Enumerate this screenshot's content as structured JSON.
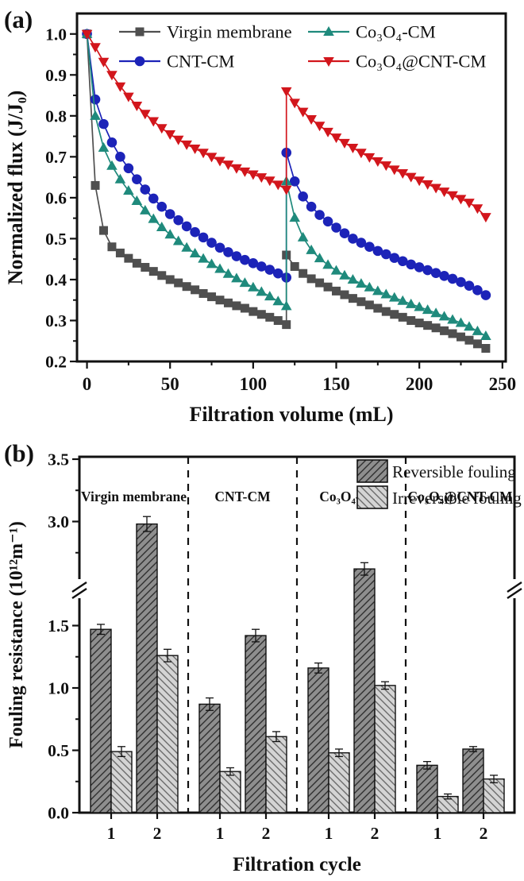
{
  "figure": {
    "panel_a_label": "(a)",
    "panel_b_label": "(b)",
    "background": "#ffffff",
    "frame_color": "#111111"
  },
  "chart_data": [
    {
      "type": "line",
      "panel": "a",
      "xlabel": "Filtration volume (mL)",
      "ylabel": "Normalized flux (J/J₀)",
      "xlim": [
        -6,
        252
      ],
      "ylim": [
        0.2,
        1.05
      ],
      "xticks": [
        0,
        50,
        100,
        150,
        200,
        250
      ],
      "xminor": [
        25,
        75,
        125,
        175,
        225
      ],
      "yticks": [
        0.2,
        0.3,
        0.4,
        0.5,
        0.6,
        0.7,
        0.8,
        0.9,
        1.0
      ],
      "yminor": [
        0.25,
        0.35,
        0.45,
        0.55,
        0.65,
        0.75,
        0.85,
        0.95
      ],
      "grid": false,
      "legend_position": "top-inside-two-columns",
      "legend_rows": [
        [
          0,
          2
        ],
        [
          1,
          3
        ]
      ],
      "x_cycle1": [
        0,
        5,
        10,
        15,
        20,
        25,
        30,
        35,
        40,
        45,
        50,
        55,
        60,
        65,
        70,
        75,
        80,
        85,
        90,
        95,
        100,
        105,
        110,
        115,
        120
      ],
      "x_cycle2": [
        120,
        125,
        130,
        135,
        140,
        145,
        150,
        155,
        160,
        165,
        170,
        175,
        180,
        185,
        190,
        195,
        200,
        205,
        210,
        215,
        220,
        225,
        230,
        235,
        240
      ],
      "series": [
        {
          "name": "Virgin membrane",
          "color": "#4f4f4f",
          "marker": "square",
          "y_cycle1": [
            1.0,
            0.63,
            0.52,
            0.48,
            0.465,
            0.452,
            0.44,
            0.43,
            0.42,
            0.41,
            0.4,
            0.392,
            0.383,
            0.375,
            0.366,
            0.358,
            0.35,
            0.343,
            0.336,
            0.33,
            0.322,
            0.315,
            0.308,
            0.3,
            0.29
          ],
          "y_cycle2": [
            0.46,
            0.432,
            0.415,
            0.402,
            0.392,
            0.382,
            0.372,
            0.363,
            0.354,
            0.346,
            0.338,
            0.33,
            0.322,
            0.315,
            0.308,
            0.3,
            0.294,
            0.288,
            0.282,
            0.275,
            0.268,
            0.26,
            0.252,
            0.243,
            0.232
          ]
        },
        {
          "name": "CNT-CM",
          "color": "#1c23b8",
          "marker": "circle",
          "y_cycle1": [
            1.0,
            0.84,
            0.78,
            0.735,
            0.7,
            0.672,
            0.645,
            0.62,
            0.598,
            0.578,
            0.56,
            0.545,
            0.53,
            0.516,
            0.503,
            0.49,
            0.478,
            0.467,
            0.457,
            0.448,
            0.44,
            0.432,
            0.424,
            0.415,
            0.405
          ],
          "y_cycle2": [
            0.71,
            0.64,
            0.603,
            0.578,
            0.558,
            0.542,
            0.527,
            0.513,
            0.5,
            0.49,
            0.48,
            0.47,
            0.462,
            0.453,
            0.445,
            0.437,
            0.43,
            0.423,
            0.416,
            0.409,
            0.402,
            0.394,
            0.385,
            0.374,
            0.362
          ]
        },
        {
          "name": "Co₃O₄-CM",
          "color": "#1f8a7c",
          "marker": "triangle-up",
          "y_cycle1": [
            1.0,
            0.8,
            0.722,
            0.678,
            0.645,
            0.617,
            0.592,
            0.569,
            0.548,
            0.528,
            0.51,
            0.494,
            0.478,
            0.464,
            0.451,
            0.438,
            0.426,
            0.414,
            0.403,
            0.392,
            0.381,
            0.37,
            0.359,
            0.347,
            0.335
          ],
          "y_cycle2": [
            0.64,
            0.551,
            0.503,
            0.472,
            0.452,
            0.436,
            0.422,
            0.41,
            0.4,
            0.39,
            0.381,
            0.372,
            0.364,
            0.356,
            0.348,
            0.34,
            0.333,
            0.326,
            0.318,
            0.31,
            0.302,
            0.294,
            0.285,
            0.274,
            0.262
          ]
        },
        {
          "name": "Co₃O₄@CNT-CM",
          "color": "#d2161c",
          "marker": "triangle-down",
          "y_cycle1": [
            1.0,
            0.968,
            0.932,
            0.9,
            0.872,
            0.847,
            0.825,
            0.805,
            0.787,
            0.77,
            0.755,
            0.742,
            0.73,
            0.72,
            0.71,
            0.7,
            0.69,
            0.681,
            0.672,
            0.664,
            0.657,
            0.65,
            0.642,
            0.632,
            0.62
          ],
          "y_cycle2": [
            0.86,
            0.832,
            0.81,
            0.792,
            0.776,
            0.761,
            0.747,
            0.734,
            0.722,
            0.71,
            0.699,
            0.689,
            0.679,
            0.669,
            0.66,
            0.651,
            0.642,
            0.633,
            0.624,
            0.615,
            0.606,
            0.597,
            0.588,
            0.574,
            0.553
          ]
        }
      ]
    },
    {
      "type": "bar",
      "panel": "b",
      "xlabel": "Filtration cycle",
      "ylabel": "Fouling resistance (10¹²m⁻¹)",
      "ylim": [
        0,
        3.5
      ],
      "axis_break": {
        "lower_max": 1.78,
        "upper_min": 2.47
      },
      "yticks_lower": [
        0,
        0.5,
        1.0,
        1.5
      ],
      "yminor_lower": [
        0.25,
        0.75,
        1.25
      ],
      "yticks_upper": [
        3.0,
        3.5
      ],
      "yminor_upper": [
        2.75,
        3.25
      ],
      "cycle_labels": [
        "1",
        "2"
      ],
      "legend": [
        {
          "label": "Reversible fouling",
          "fill": "#8e8e8e",
          "hatch": "/",
          "hatch_color": "#2f2f2f"
        },
        {
          "label": "Irreversible fouling",
          "fill": "#d4d4d4",
          "hatch": "\\",
          "hatch_color": "#6a6a6a"
        }
      ],
      "groups": [
        {
          "label": "Virgin membrane",
          "cycles": [
            {
              "cycle": "1",
              "reversible": 1.47,
              "reversible_err": 0.04,
              "irreversible": 0.49,
              "irreversible_err": 0.04
            },
            {
              "cycle": "2",
              "reversible": 2.98,
              "reversible_err": 0.06,
              "irreversible": 1.26,
              "irreversible_err": 0.05
            }
          ]
        },
        {
          "label": "CNT-CM",
          "cycles": [
            {
              "cycle": "1",
              "reversible": 0.87,
              "reversible_err": 0.05,
              "irreversible": 0.33,
              "irreversible_err": 0.03
            },
            {
              "cycle": "2",
              "reversible": 1.42,
              "reversible_err": 0.05,
              "irreversible": 0.61,
              "irreversible_err": 0.04
            }
          ]
        },
        {
          "label": "Co₃O₄-CM",
          "cycles": [
            {
              "cycle": "1",
              "reversible": 1.16,
              "reversible_err": 0.04,
              "irreversible": 0.48,
              "irreversible_err": 0.03
            },
            {
              "cycle": "2",
              "reversible": 2.62,
              "reversible_err": 0.05,
              "irreversible": 1.02,
              "irreversible_err": 0.03
            }
          ]
        },
        {
          "label": "Co₃O₄@CNT-CM",
          "cycles": [
            {
              "cycle": "1",
              "reversible": 0.38,
              "reversible_err": 0.03,
              "irreversible": 0.13,
              "irreversible_err": 0.02
            },
            {
              "cycle": "2",
              "reversible": 0.51,
              "reversible_err": 0.02,
              "irreversible": 0.27,
              "irreversible_err": 0.03
            }
          ]
        }
      ]
    }
  ]
}
